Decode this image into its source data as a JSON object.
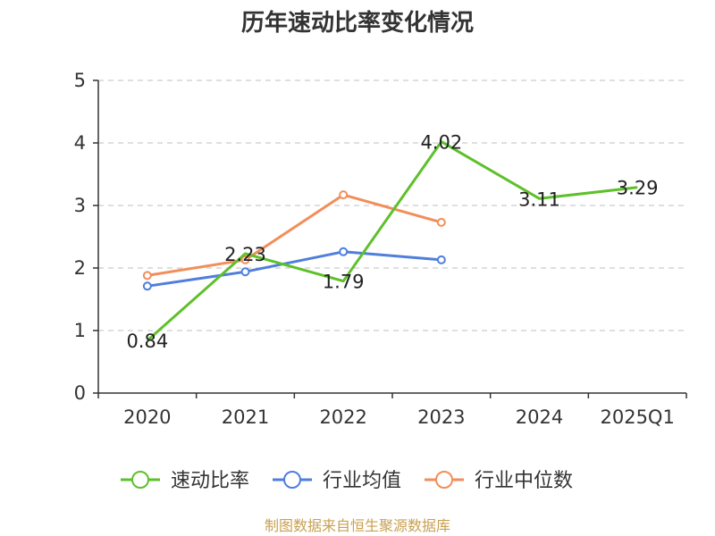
{
  "chart_data": {
    "type": "line",
    "title": "历年速动比率变化情况",
    "categories": [
      "2020",
      "2021",
      "2022",
      "2023",
      "2024",
      "2025Q1"
    ],
    "ylim": [
      0,
      5
    ],
    "yticks": [
      "0",
      "1",
      "2",
      "3",
      "4",
      "5"
    ],
    "grid": true,
    "legend_position": "bottom",
    "series": [
      {
        "name": "速动比率",
        "color": "#5ec02b",
        "values": [
          0.84,
          2.23,
          1.79,
          4.02,
          3.11,
          3.29
        ],
        "labels": [
          "0.84",
          "2.23",
          "1.79",
          "4.02",
          "3.11",
          "3.29"
        ]
      },
      {
        "name": "行业均值",
        "color": "#4f7fdb",
        "values": [
          1.71,
          1.94,
          2.26,
          2.13,
          null,
          null
        ]
      },
      {
        "name": "行业中位数",
        "color": "#f28e5a",
        "values": [
          1.88,
          2.13,
          3.17,
          2.73,
          null,
          null
        ]
      }
    ],
    "source": "制图数据来自恒生聚源数据库",
    "source_color": "#c8a050"
  }
}
